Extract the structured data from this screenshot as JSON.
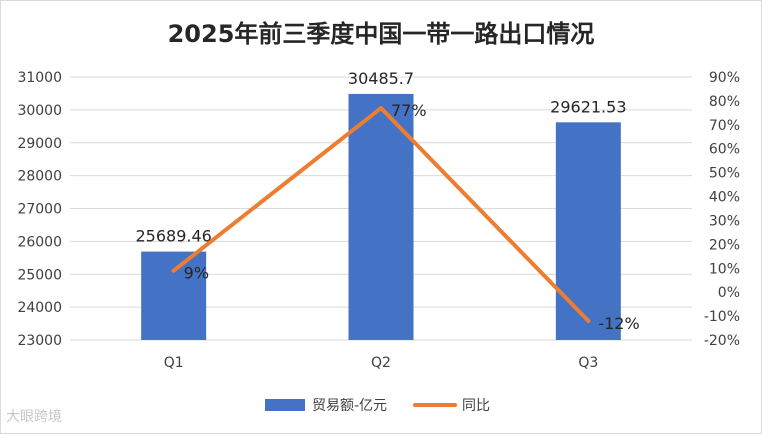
{
  "chart_data": {
    "type": "bar",
    "title": "2025年前三季度中国一带一路出口情况",
    "categories": [
      "Q1",
      "Q2",
      "Q3"
    ],
    "series": [
      {
        "name": "贸易额-亿元",
        "type": "bar",
        "axis": "left",
        "values": [
          25689.46,
          30485.7,
          29621.53
        ],
        "labels": [
          "25689.46",
          "30485.7",
          "29621.53"
        ],
        "color": "#4472C4"
      },
      {
        "name": "同比",
        "type": "line",
        "axis": "right",
        "values": [
          9,
          77,
          -12
        ],
        "labels": [
          "9%",
          "77%",
          "-12%"
        ],
        "color": "#ED7D31"
      }
    ],
    "ylim": [
      23000,
      31000
    ],
    "yticks": [
      "23000",
      "24000",
      "25000",
      "26000",
      "27000",
      "28000",
      "29000",
      "30000",
      "31000"
    ],
    "y2lim": [
      -20,
      90
    ],
    "y2ticks": [
      "-20%",
      "-10%",
      "0%",
      "10%",
      "20%",
      "30%",
      "40%",
      "50%",
      "60%",
      "70%",
      "80%",
      "90%"
    ],
    "grid": true,
    "legend_position": "bottom"
  },
  "watermark": "大眼跨境"
}
